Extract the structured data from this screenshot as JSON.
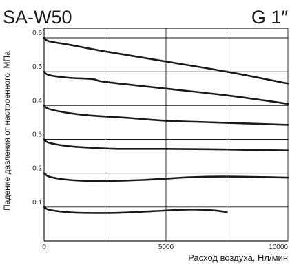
{
  "header": {
    "model": "SA-W50",
    "thread": "G 1″"
  },
  "chart_data": {
    "type": "line",
    "title": "",
    "xlabel": "Расход воздуха, Нл/мин",
    "ylabel": "Падение давления от настроенного, МПа",
    "xlim": [
      0,
      10000
    ],
    "ylim": [
      0,
      0.6
    ],
    "x_ticks": [
      0,
      5000,
      10000
    ],
    "x_tick_labels": [
      "0",
      "5000",
      "10000"
    ],
    "y_ticks": [
      0.1,
      0.2,
      0.3,
      0.4,
      0.5,
      0.6
    ],
    "y_tick_labels": [
      "0.1",
      "0.2",
      "0.3",
      "0.4",
      "0.5",
      "0.6"
    ],
    "x_gridlines": [
      2500,
      5000,
      7500,
      10000
    ],
    "grid": true,
    "legend": "none",
    "line_color": "#1a1a1a",
    "series": [
      {
        "x": [
          0,
          200,
          1000,
          2500,
          5000,
          7500,
          10000
        ],
        "y": [
          0.6,
          0.59,
          0.58,
          0.56,
          0.53,
          0.5,
          0.465
        ]
      },
      {
        "x": [
          0,
          200,
          1000,
          2000,
          2500,
          5000,
          7500,
          10000
        ],
        "y": [
          0.5,
          0.49,
          0.482,
          0.478,
          0.47,
          0.45,
          0.43,
          0.405
        ]
      },
      {
        "x": [
          0,
          200,
          1000,
          2000,
          3500,
          5000,
          7000,
          10000
        ],
        "y": [
          0.4,
          0.39,
          0.378,
          0.37,
          0.363,
          0.355,
          0.35,
          0.343
        ]
      },
      {
        "x": [
          0,
          200,
          1000,
          2000,
          3000,
          5000,
          7500,
          10000
        ],
        "y": [
          0.3,
          0.29,
          0.28,
          0.275,
          0.272,
          0.272,
          0.27,
          0.267
        ]
      },
      {
        "x": [
          0,
          200,
          800,
          1500,
          2500,
          4000,
          6000,
          7500,
          10000
        ],
        "y": [
          0.2,
          0.19,
          0.182,
          0.178,
          0.177,
          0.18,
          0.188,
          0.19,
          0.187
        ]
      },
      {
        "x": [
          0,
          200,
          800,
          1500,
          3000,
          4500,
          6000,
          7000,
          7500
        ],
        "y": [
          0.1,
          0.092,
          0.086,
          0.083,
          0.083,
          0.088,
          0.093,
          0.09,
          0.085
        ]
      }
    ]
  }
}
